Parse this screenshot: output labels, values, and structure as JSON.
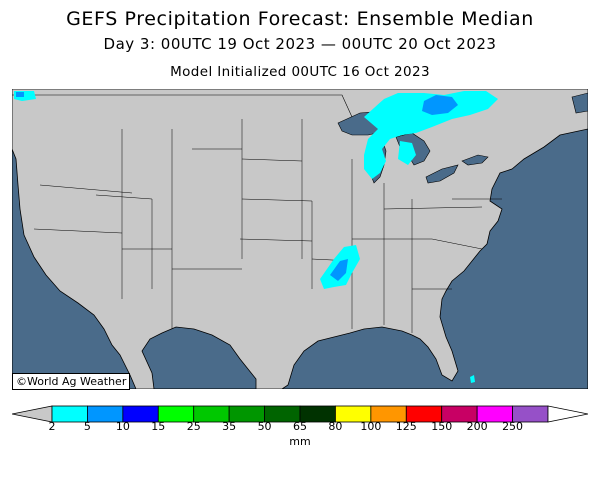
{
  "title": "GEFS Precipitation Forecast: Ensemble Median",
  "subtitle": "Day 3: 00UTC 19 Oct 2023 — 00UTC 20 Oct 2023",
  "init_line": "Model Initialized 00UTC 16 Oct 2023",
  "copyright": "©World Ag Weather",
  "colorbar": {
    "unit": "mm",
    "ticks": [
      "2",
      "5",
      "10",
      "15",
      "25",
      "35",
      "50",
      "65",
      "80",
      "100",
      "125",
      "150",
      "200",
      "250"
    ],
    "colors": [
      "#00ffff",
      "#0096ff",
      "#0000ff",
      "#00ff00",
      "#00c800",
      "#009600",
      "#006400",
      "#003200",
      "#ffff00",
      "#ff9600",
      "#ff0000",
      "#c80064",
      "#ff00ff",
      "#9650c8"
    ],
    "under_color": "#c8c8c8",
    "over_color": "#ffffff"
  },
  "map_colors": {
    "ocean": "#4a6b8a",
    "land": "#c8c8c8",
    "border": "#000000"
  },
  "precip_areas": [
    {
      "region": "Upper Great Lakes / Ontario",
      "bin": "2-10 mm"
    },
    {
      "region": "Lower Michigan",
      "bin": "2-5 mm"
    },
    {
      "region": "Arkansas / Mississippi",
      "bin": "2-10 mm"
    },
    {
      "region": "Pacific Northwest coast",
      "bin": "2-10 mm"
    },
    {
      "region": "South Florida",
      "bin": "2-5 mm"
    }
  ]
}
